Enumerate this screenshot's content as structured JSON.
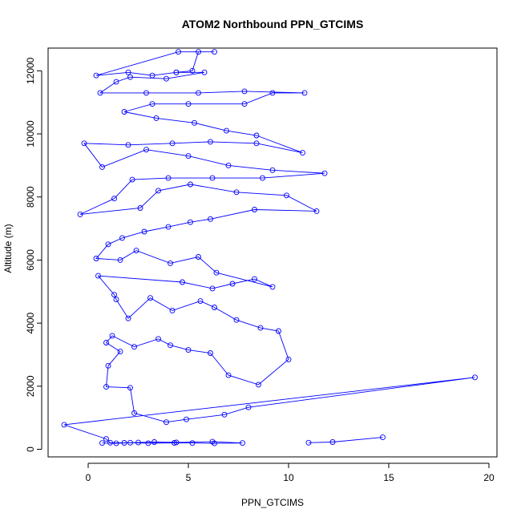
{
  "chart_data": {
    "type": "line",
    "title": "ATOM2 Northbound PPN_GTCIMS",
    "xlabel": "PPN_GTCIMS",
    "ylabel": "Altitude (m)",
    "xlim": [
      -2,
      20.4
    ],
    "ylim": [
      -240,
      12720
    ],
    "xticks": [
      0,
      5,
      10,
      15,
      20
    ],
    "yticks": [
      0,
      2000,
      4000,
      6000,
      8000,
      10000,
      12000
    ],
    "xtick_labels": [
      "0",
      "5",
      "10",
      "15",
      "20"
    ],
    "ytick_labels": [
      "0",
      "2000",
      "4000",
      "6000",
      "8000",
      "10000",
      "12000"
    ],
    "grid": false,
    "legend": "none",
    "marker": "open-circle",
    "color": "#0000ff",
    "series": [
      {
        "values": [
          [
            0.7,
            200
          ],
          [
            1.4,
            190
          ],
          [
            2.1,
            210
          ],
          [
            3.0,
            195
          ],
          [
            4.3,
            205
          ],
          [
            5.2,
            200
          ],
          [
            6.3,
            190
          ],
          [
            7.7,
            200
          ],
          [
            6.2,
            240
          ],
          [
            4.4,
            220
          ],
          [
            3.3,
            230
          ],
          [
            2.5,
            215
          ],
          [
            1.8,
            205
          ],
          [
            1.1,
            210
          ],
          [
            0.9,
            330
          ],
          [
            -1.2,
            780
          ],
          [
            19.3,
            2280
          ],
          [
            8.0,
            1330
          ],
          [
            6.8,
            1100
          ],
          [
            4.9,
            950
          ],
          [
            3.9,
            860
          ],
          [
            2.3,
            1150
          ],
          [
            2.1,
            1950
          ],
          [
            0.9,
            1980
          ],
          [
            1.0,
            2650
          ],
          [
            1.6,
            3100
          ],
          [
            0.9,
            3380
          ],
          [
            1.2,
            3600
          ],
          [
            2.3,
            3250
          ],
          [
            3.5,
            3500
          ],
          [
            4.1,
            3300
          ],
          [
            5.0,
            3150
          ],
          [
            6.1,
            3050
          ],
          [
            7.0,
            2350
          ],
          [
            8.5,
            2050
          ],
          [
            10.0,
            2850
          ],
          [
            9.5,
            3750
          ],
          [
            8.6,
            3850
          ],
          [
            7.4,
            4100
          ],
          [
            6.3,
            4500
          ],
          [
            5.6,
            4700
          ],
          [
            4.2,
            4400
          ],
          [
            3.1,
            4800
          ],
          [
            2.0,
            4150
          ],
          [
            1.4,
            4750
          ],
          [
            1.3,
            4900
          ],
          [
            0.5,
            5500
          ],
          [
            4.7,
            5300
          ],
          [
            6.2,
            5100
          ],
          [
            7.2,
            5250
          ],
          [
            8.3,
            5400
          ],
          [
            9.2,
            5150
          ],
          [
            6.4,
            5600
          ],
          [
            5.5,
            6100
          ],
          [
            4.1,
            5900
          ],
          [
            2.4,
            6300
          ],
          [
            1.6,
            6000
          ],
          [
            0.4,
            6050
          ],
          [
            1.0,
            6500
          ],
          [
            1.7,
            6700
          ],
          [
            2.8,
            6900
          ],
          [
            4.0,
            7050
          ],
          [
            5.1,
            7200
          ],
          [
            6.1,
            7300
          ],
          [
            8.3,
            7600
          ],
          [
            11.4,
            7550
          ],
          [
            9.9,
            8050
          ],
          [
            7.4,
            8150
          ],
          [
            5.1,
            8400
          ],
          [
            3.5,
            8200
          ],
          [
            2.6,
            7650
          ],
          [
            -0.4,
            7450
          ],
          [
            1.3,
            7950
          ],
          [
            2.2,
            8550
          ],
          [
            4.0,
            8600
          ],
          [
            6.2,
            8600
          ],
          [
            8.7,
            8600
          ],
          [
            11.8,
            8750
          ],
          [
            9.2,
            8850
          ],
          [
            7.0,
            9000
          ],
          [
            5.0,
            9300
          ],
          [
            2.9,
            9500
          ],
          [
            0.7,
            8950
          ],
          [
            -0.2,
            9700
          ],
          [
            2.0,
            9650
          ],
          [
            4.2,
            9700
          ],
          [
            6.1,
            9750
          ],
          [
            8.4,
            9700
          ],
          [
            10.7,
            9400
          ],
          [
            8.4,
            9950
          ],
          [
            6.9,
            10100
          ],
          [
            5.3,
            10350
          ],
          [
            3.4,
            10500
          ],
          [
            1.8,
            10700
          ],
          [
            3.2,
            10950
          ],
          [
            5.0,
            10950
          ],
          [
            7.8,
            10950
          ],
          [
            9.2,
            11300
          ],
          [
            10.8,
            11300
          ],
          [
            7.8,
            11350
          ],
          [
            5.5,
            11300
          ],
          [
            2.9,
            11300
          ],
          [
            0.6,
            11300
          ],
          [
            1.4,
            11650
          ],
          [
            2.1,
            11800
          ],
          [
            3.9,
            11750
          ],
          [
            5.8,
            11950
          ],
          [
            4.4,
            11950
          ],
          [
            3.2,
            11850
          ],
          [
            2.0,
            11950
          ],
          [
            0.4,
            11850
          ],
          [
            4.5,
            12600
          ],
          [
            6.3,
            12600
          ]
        ]
      },
      {
        "values": [
          [
            11.0,
            210
          ],
          [
            12.2,
            230
          ],
          [
            14.7,
            380
          ]
        ]
      },
      {
        "values": [
          [
            4.4,
            11950
          ],
          [
            5.2,
            12000
          ],
          [
            5.5,
            12600
          ]
        ]
      }
    ]
  }
}
